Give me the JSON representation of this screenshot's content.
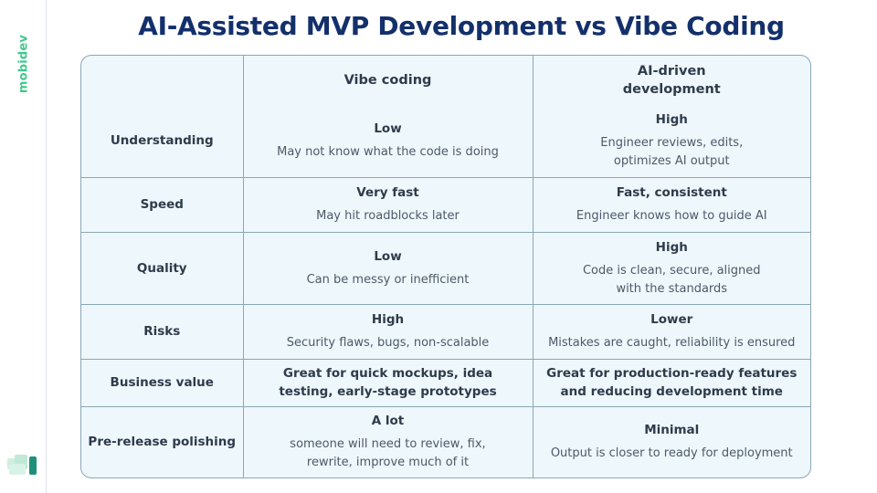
{
  "brand": "mobidev",
  "title": "AI-Assisted MVP Development vs Vibe Coding",
  "table": {
    "columns": [
      "Vibe coding",
      "AI-driven development"
    ],
    "column_lines": [
      [
        "Vibe coding"
      ],
      [
        "AI-driven",
        "development"
      ]
    ],
    "rows": [
      {
        "label": "Understanding",
        "vibe": {
          "level": "Low",
          "detail": [
            "May not know what the code is doing"
          ]
        },
        "ai": {
          "level": "High",
          "detail": [
            "Engineer reviews, edits,",
            "optimizes AI output"
          ]
        }
      },
      {
        "label": "Speed",
        "vibe": {
          "level": "Very fast",
          "detail": [
            "May hit roadblocks later"
          ]
        },
        "ai": {
          "level": "Fast, consistent",
          "detail": [
            "Engineer knows how to guide AI"
          ]
        }
      },
      {
        "label": "Quality",
        "vibe": {
          "level": "Low",
          "detail": [
            "Can be messy or inefficient"
          ]
        },
        "ai": {
          "level": "High",
          "detail": [
            "Code is clean, secure, aligned",
            "with the standards"
          ]
        }
      },
      {
        "label": "Risks",
        "vibe": {
          "level": "High",
          "detail": [
            "Security flaws, bugs, non-scalable"
          ]
        },
        "ai": {
          "level": "Lower",
          "detail": [
            "Mistakes are caught, reliability is ensured"
          ]
        }
      },
      {
        "label": "Business value",
        "vibe": {
          "level": "Great for quick mockups, idea testing, early-stage prototypes",
          "level_lines": [
            "Great for quick mockups, idea",
            "testing, early-stage prototypes"
          ],
          "detail": []
        },
        "ai": {
          "level": "Great for production-ready features and reducing development time",
          "level_lines": [
            "Great for production-ready features",
            "and reducing development time"
          ],
          "detail": []
        }
      },
      {
        "label": "Pre-release polishing",
        "vibe": {
          "level": "A lot",
          "detail": [
            "someone will need to review, fix,",
            "rewrite, improve much of it"
          ]
        },
        "ai": {
          "level": "Minimal",
          "detail": [
            "Output is closer to ready for deployment"
          ]
        }
      }
    ]
  },
  "colors": {
    "title": "#13306b",
    "brand": "#3fc98f",
    "table_bg": "#eef7fb",
    "grid": "#8aa7b7",
    "corner_mark_light": "#bfe9d6",
    "corner_mark_dark": "#1f8f7a"
  }
}
